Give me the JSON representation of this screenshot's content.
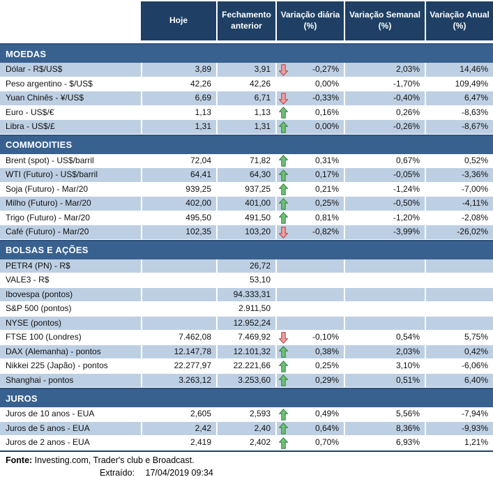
{
  "colors": {
    "header_bg": "#1F4064",
    "header_text": "#FFFFFF",
    "section_bg": "#39618F",
    "section_border": "#2E537F",
    "row_shade": "#BDCFE3",
    "text": "#111111",
    "arrow_up_fill": "#6FBF77",
    "arrow_up_stroke": "#2F7D3B",
    "arrow_down_fill": "#EF9F9F",
    "arrow_down_stroke": "#AC3F3F"
  },
  "icons": {
    "up": "up-arrow-icon",
    "down": "down-arrow-icon"
  },
  "table": {
    "columns": [
      "Hoje",
      "Fechamento anterior",
      "Variação diária (%)",
      "Variação Semanal (%)",
      "Variação Anual (%)"
    ],
    "sections": [
      {
        "title": "MOEDAS",
        "rows": [
          {
            "label": "Dólar - R$/US$",
            "hoje": "3,89",
            "fechamento": "3,91",
            "arrow": "down",
            "diaria": "-0,27%",
            "semanal": "2,03%",
            "anual": "14,46%",
            "shaded": true
          },
          {
            "label": "Peso argentino - $/US$",
            "hoje": "42,26",
            "fechamento": "42,26",
            "arrow": null,
            "diaria": "0,00%",
            "semanal": "-1,70%",
            "anual": "109,49%",
            "shaded": false
          },
          {
            "label": "Yuan Chinês - ¥/US$",
            "hoje": "6,69",
            "fechamento": "6,71",
            "arrow": "down",
            "diaria": "-0,33%",
            "semanal": "-0,40%",
            "anual": "6,47%",
            "shaded": true
          },
          {
            "label": "Euro - US$/€",
            "hoje": "1,13",
            "fechamento": "1,13",
            "arrow": "up",
            "diaria": "0,16%",
            "semanal": "0,26%",
            "anual": "-8,63%",
            "shaded": false
          },
          {
            "label": "Libra - US$/£",
            "hoje": "1,31",
            "fechamento": "1,31",
            "arrow": "up",
            "diaria": "0,00%",
            "semanal": "-0,26%",
            "anual": "-8,67%",
            "shaded": true
          }
        ]
      },
      {
        "title": "COMMODITIES",
        "rows": [
          {
            "label": "Brent (spot) - US$/barril",
            "hoje": "72,04",
            "fechamento": "71,82",
            "arrow": "up",
            "diaria": "0,31%",
            "semanal": "0,67%",
            "anual": "0,52%",
            "shaded": false
          },
          {
            "label": "WTI (Futuro) - US$/barril",
            "hoje": "64,41",
            "fechamento": "64,30",
            "arrow": "up",
            "diaria": "0,17%",
            "semanal": "-0,05%",
            "anual": "-3,36%",
            "shaded": true
          },
          {
            "label": "Soja (Futuro) - Mar/20",
            "hoje": "939,25",
            "fechamento": "937,25",
            "arrow": "up",
            "diaria": "0,21%",
            "semanal": "-1,24%",
            "anual": "-7,00%",
            "shaded": false
          },
          {
            "label": "Milho (Futuro) - Mar/20",
            "hoje": "402,00",
            "fechamento": "401,00",
            "arrow": "up",
            "diaria": "0,25%",
            "semanal": "-0,50%",
            "anual": "-4,11%",
            "shaded": true
          },
          {
            "label": "Trigo (Futuro) - Mar/20",
            "hoje": "495,50",
            "fechamento": "491,50",
            "arrow": "up",
            "diaria": "0,81%",
            "semanal": "-1,20%",
            "anual": "-2,08%",
            "shaded": false
          },
          {
            "label": "Café (Futuro) - Mar/20",
            "hoje": "102,35",
            "fechamento": "103,20",
            "arrow": "down",
            "diaria": "-0,82%",
            "semanal": "-3,99%",
            "anual": "-26,02%",
            "shaded": true
          }
        ]
      },
      {
        "title": "BOLSAS E AÇÕES",
        "rows": [
          {
            "label": "PETR4 (PN) - R$",
            "hoje": "",
            "fechamento": "26,72",
            "arrow": null,
            "diaria": "",
            "semanal": "",
            "anual": "",
            "shaded": true
          },
          {
            "label": "VALE3 - R$",
            "hoje": "",
            "fechamento": "53,10",
            "arrow": null,
            "diaria": "",
            "semanal": "",
            "anual": "",
            "shaded": false
          },
          {
            "label": "Ibovespa (pontos)",
            "hoje": "",
            "fechamento": "94.333,31",
            "arrow": null,
            "diaria": "",
            "semanal": "",
            "anual": "",
            "shaded": true
          },
          {
            "label": "S&P 500 (pontos)",
            "hoje": "",
            "fechamento": "2.911,50",
            "arrow": null,
            "diaria": "",
            "semanal": "",
            "anual": "",
            "shaded": false
          },
          {
            "label": "NYSE (pontos)",
            "hoje": "",
            "fechamento": "12.952,24",
            "arrow": null,
            "diaria": "",
            "semanal": "",
            "anual": "",
            "shaded": true
          },
          {
            "label": "FTSE 100 (Londres)",
            "hoje": "7.462,08",
            "fechamento": "7.469,92",
            "arrow": "down",
            "diaria": "-0,10%",
            "semanal": "0,54%",
            "anual": "5,75%",
            "shaded": false
          },
          {
            "label": "DAX (Alemanha) - pontos",
            "hoje": "12.147,78",
            "fechamento": "12.101,32",
            "arrow": "up",
            "diaria": "0,38%",
            "semanal": "2,03%",
            "anual": "0,42%",
            "shaded": true
          },
          {
            "label": "Nikkei 225 (Japão) - pontos",
            "hoje": "22.277,97",
            "fechamento": "22.221,66",
            "arrow": "up",
            "diaria": "0,25%",
            "semanal": "3,10%",
            "anual": "-6,06%",
            "shaded": false
          },
          {
            "label": "Shanghai - pontos",
            "hoje": "3.263,12",
            "fechamento": "3.253,60",
            "arrow": "up",
            "diaria": "0,29%",
            "semanal": "0,51%",
            "anual": "6,40%",
            "shaded": true
          }
        ]
      },
      {
        "title": "JUROS",
        "rows": [
          {
            "label": "Juros de 10 anos - EUA",
            "hoje": "2,605",
            "fechamento": "2,593",
            "arrow": "up",
            "diaria": "0,49%",
            "semanal": "5,56%",
            "anual": "-7,94%",
            "shaded": false
          },
          {
            "label": "Juros de 5 anos - EUA",
            "hoje": "2,42",
            "fechamento": "2,40",
            "arrow": "up",
            "diaria": "0,64%",
            "semanal": "8,36%",
            "anual": "-9,93%",
            "shaded": true
          },
          {
            "label": "Juros de 2 anos - EUA",
            "hoje": "2,419",
            "fechamento": "2,402",
            "arrow": "up",
            "diaria": "0,70%",
            "semanal": "6,93%",
            "anual": "1,21%",
            "shaded": false
          }
        ]
      }
    ]
  },
  "footer": {
    "fonte_label": "Fonte:",
    "fonte_text": "Investing.com, Trader's club e Broadcast.",
    "extraido_label": "Extraído:",
    "extraido_value": "17/04/2019 09:34"
  }
}
